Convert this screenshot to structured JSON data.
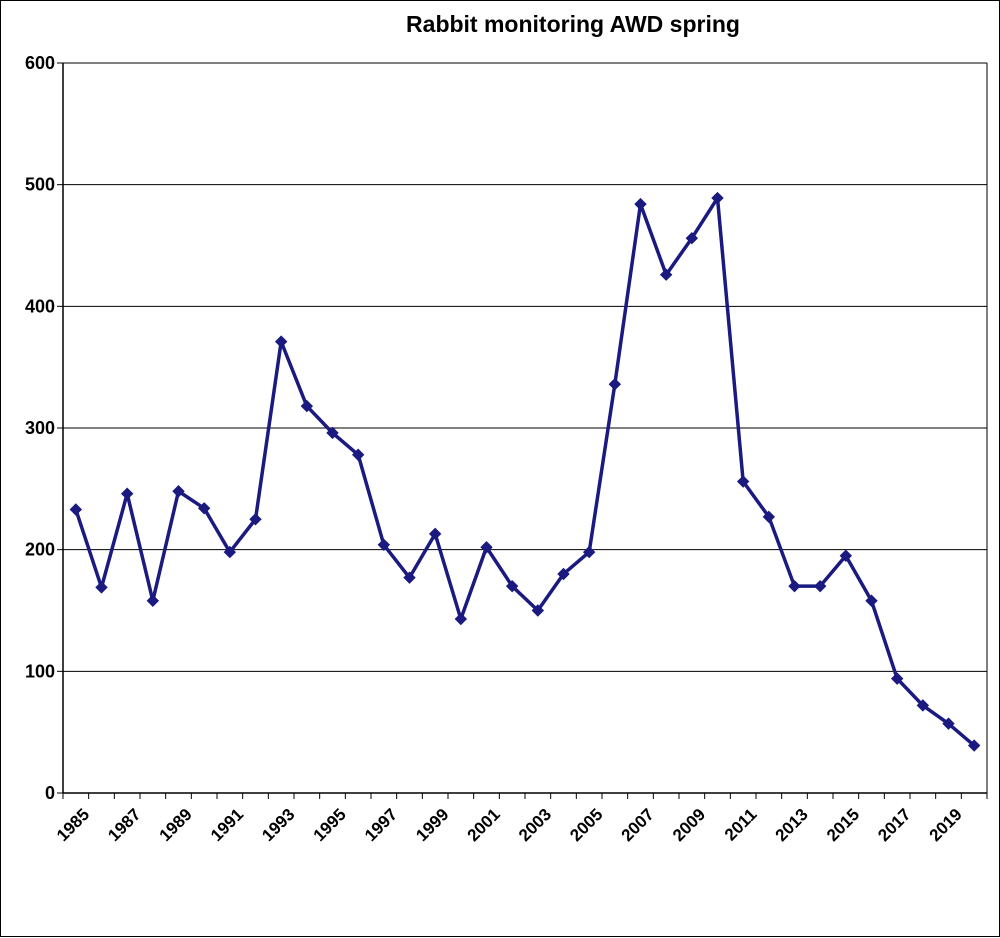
{
  "chart_data": {
    "type": "line",
    "title": "Rabbit monitoring AWD spring",
    "xlabel": "",
    "ylabel": "",
    "x": [
      1985,
      1986,
      1987,
      1988,
      1989,
      1990,
      1991,
      1992,
      1993,
      1994,
      1995,
      1996,
      1997,
      1998,
      1999,
      2000,
      2001,
      2002,
      2003,
      2004,
      2005,
      2006,
      2007,
      2008,
      2009,
      2010,
      2011,
      2012,
      2013,
      2014,
      2015,
      2016,
      2017,
      2018,
      2019,
      2020
    ],
    "series": [
      {
        "values": [
          233,
          169,
          246,
          158,
          248,
          234,
          198,
          225,
          371,
          318,
          296,
          278,
          204,
          177,
          213,
          143,
          202,
          170,
          150,
          180,
          198,
          336,
          484,
          426,
          456,
          489,
          256,
          227,
          170,
          170,
          195,
          158,
          94,
          72,
          57,
          39
        ],
        "color": "#1a1a80"
      }
    ],
    "xticks": [
      "1985",
      "1987",
      "1989",
      "1991",
      "1993",
      "1995",
      "1997",
      "1999",
      "2001",
      "2003",
      "2005",
      "2007",
      "2009",
      "2011",
      "2013",
      "2015",
      "2017",
      "2019"
    ],
    "yticks": [
      "0",
      "100",
      "200",
      "300",
      "400",
      "500",
      "600"
    ],
    "ylim": [
      0,
      600
    ],
    "grid": "horizontal",
    "legend": "none",
    "marker": "diamond"
  }
}
